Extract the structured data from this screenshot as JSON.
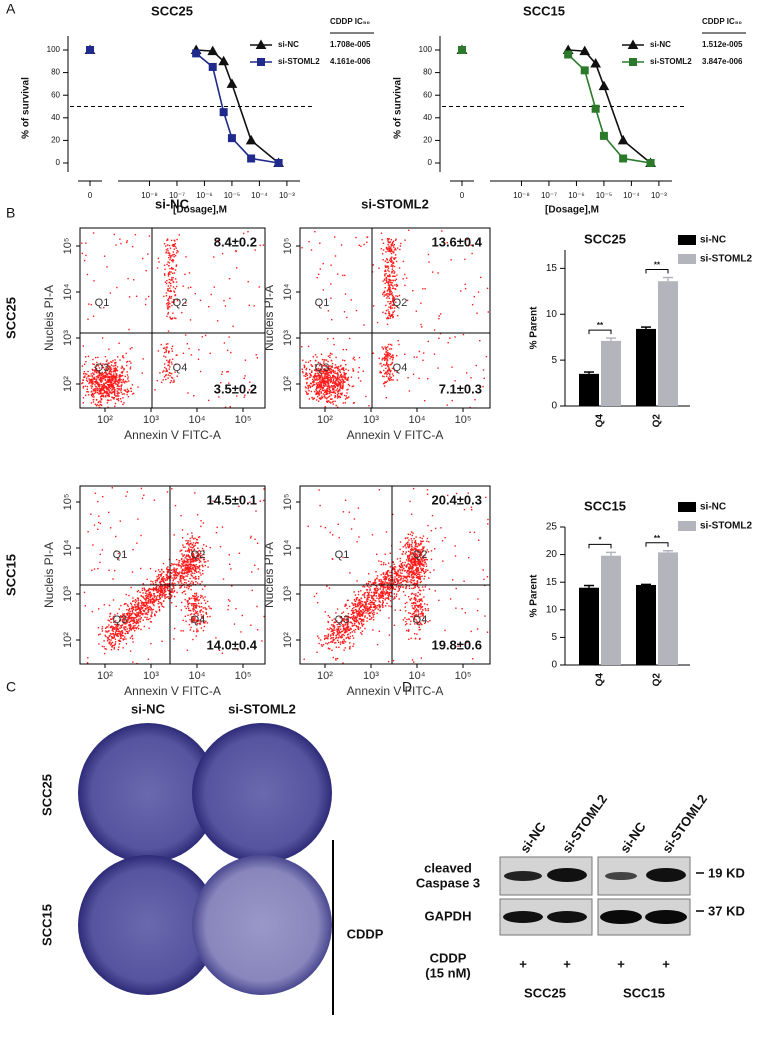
{
  "panel_letters": [
    "A",
    "B",
    "C",
    "D"
  ],
  "chart_data": [
    {
      "type": "line",
      "title": "SCC25",
      "x_label": "[Dosage],M",
      "y_label": "% of survival",
      "xscale": "log",
      "x": [
        5e-07,
        2e-06,
        5e-06,
        1e-05,
        5e-05,
        0.0005
      ],
      "xlim": [
        1e-09,
        0.003
      ],
      "xticks": [
        0,
        {
          "value": 1e-08,
          "label": "10⁻⁸"
        },
        {
          "value": 1e-07,
          "label": "10⁻⁷"
        },
        {
          "value": 1e-06,
          "label": "10⁻⁶"
        },
        {
          "value": 1e-05,
          "label": "10⁻⁵"
        },
        {
          "value": 0.0001,
          "label": "10⁻⁴"
        },
        {
          "value": 0.001,
          "label": "10⁻³"
        }
      ],
      "ylim": [
        0,
        100
      ],
      "yticks": [
        0,
        20,
        40,
        60,
        80,
        100
      ],
      "hline": 50,
      "legend_title": "CDDP IC₅₀",
      "series": [
        {
          "name": "si-NC",
          "color": "#111111",
          "marker": "triangle",
          "control": 100,
          "values": [
            100,
            99,
            90,
            70,
            20,
            0
          ],
          "ic50": 1.708e-05,
          "ic50_label": "1.708e-005"
        },
        {
          "name": "si-STOML2",
          "color": "#1f2a8c",
          "marker": "square",
          "control": 100,
          "values": [
            97,
            85,
            45,
            22,
            4,
            0
          ],
          "ic50": 4.161e-06,
          "ic50_label": "4.161e-006"
        }
      ]
    },
    {
      "type": "line",
      "title": "SCC15",
      "x_label": "[Dosage],M",
      "y_label": "% of survival",
      "xscale": "log",
      "x": [
        5e-07,
        2e-06,
        5e-06,
        1e-05,
        5e-05,
        0.0005
      ],
      "xlim": [
        1e-09,
        0.003
      ],
      "xticks": [
        0,
        {
          "value": 1e-08,
          "label": "10⁻⁸"
        },
        {
          "value": 1e-07,
          "label": "10⁻⁷"
        },
        {
          "value": 1e-06,
          "label": "10⁻⁶"
        },
        {
          "value": 1e-05,
          "label": "10⁻⁵"
        },
        {
          "value": 0.0001,
          "label": "10⁻⁴"
        },
        {
          "value": 0.001,
          "label": "10⁻³"
        }
      ],
      "ylim": [
        0,
        100
      ],
      "yticks": [
        0,
        20,
        40,
        60,
        80,
        100
      ],
      "hline": 50,
      "legend_title": "CDDP IC₅₀",
      "series": [
        {
          "name": "si-NC",
          "color": "#111111",
          "marker": "triangle",
          "control": 100,
          "values": [
            100,
            99,
            88,
            68,
            20,
            0
          ],
          "ic50": 1.512e-05,
          "ic50_label": "1.512e-005"
        },
        {
          "name": "si-STOML2",
          "color": "#2b7a2b",
          "marker": "square",
          "control": 100,
          "values": [
            96,
            82,
            48,
            24,
            4,
            0
          ],
          "ic50": 3.847e-06,
          "ic50_label": "3.847e-006"
        }
      ]
    },
    {
      "type": "bar",
      "title": "SCC25",
      "y_label": "% Parent",
      "categories": [
        "Q4",
        "Q2"
      ],
      "ylim": [
        0,
        17
      ],
      "yticks": [
        0,
        5,
        10,
        15
      ],
      "series": [
        {
          "name": "si-NC",
          "color": "#000000",
          "values": [
            3.5,
            8.4
          ],
          "errors": [
            0.2,
            0.2
          ]
        },
        {
          "name": "si-STOML2",
          "color": "#b4b4bc",
          "values": [
            7.1,
            13.6
          ],
          "errors": [
            0.3,
            0.4
          ]
        }
      ],
      "significance": [
        "**",
        "**"
      ]
    },
    {
      "type": "bar",
      "title": "SCC15",
      "y_label": "% Parent",
      "categories": [
        "Q4",
        "Q2"
      ],
      "ylim": [
        0,
        25
      ],
      "yticks": [
        0,
        5,
        10,
        15,
        20,
        25
      ],
      "series": [
        {
          "name": "si-NC",
          "color": "#000000",
          "values": [
            14.0,
            14.5
          ],
          "errors": [
            0.4,
            0.1
          ]
        },
        {
          "name": "si-STOML2",
          "color": "#b4b4bc",
          "values": [
            19.8,
            20.4
          ],
          "errors": [
            0.6,
            0.3
          ]
        }
      ],
      "significance": [
        "*",
        "**"
      ]
    }
  ],
  "flow": {
    "columns": [
      "si-NC",
      "si-STOML2"
    ],
    "rows": [
      "SCC25",
      "SCC15"
    ],
    "x_label": "Annexin V FITC-A",
    "y_label": "Nucleis PI-A",
    "ticks": [
      "10²",
      "10³",
      "10⁴",
      "10⁵"
    ],
    "quadrants": [
      "Q1",
      "Q2",
      "Q3",
      "Q4"
    ],
    "plots": [
      [
        {
          "q2": "8.4±0.2",
          "q4": "3.5±0.2"
        },
        {
          "q2": "13.6±0.4",
          "q4": "7.1±0.3"
        }
      ],
      [
        {
          "q2": "14.5±0.1",
          "q4": "14.0±0.4"
        },
        {
          "q2": "20.4±0.3",
          "q4": "19.8±0.6"
        }
      ]
    ]
  },
  "plates": {
    "columns": [
      "si-NC",
      "si-STOML2"
    ],
    "rows": [
      "SCC25",
      "SCC15"
    ],
    "treatment": "CDDP"
  },
  "blot": {
    "lanes": [
      "si-NC",
      "si-STOML2",
      "si-NC",
      "si-STOML2"
    ],
    "rows": [
      {
        "label": [
          "cleaved",
          "Caspase 3"
        ],
        "size": "19 KD"
      },
      {
        "label": [
          "GAPDH"
        ],
        "size": "37 KD"
      }
    ],
    "treatment": [
      "CDDP",
      "(15 nM)"
    ],
    "lane_marks": [
      "+",
      "+",
      "+",
      "+"
    ],
    "groups": [
      "SCC25",
      "SCC15"
    ]
  }
}
